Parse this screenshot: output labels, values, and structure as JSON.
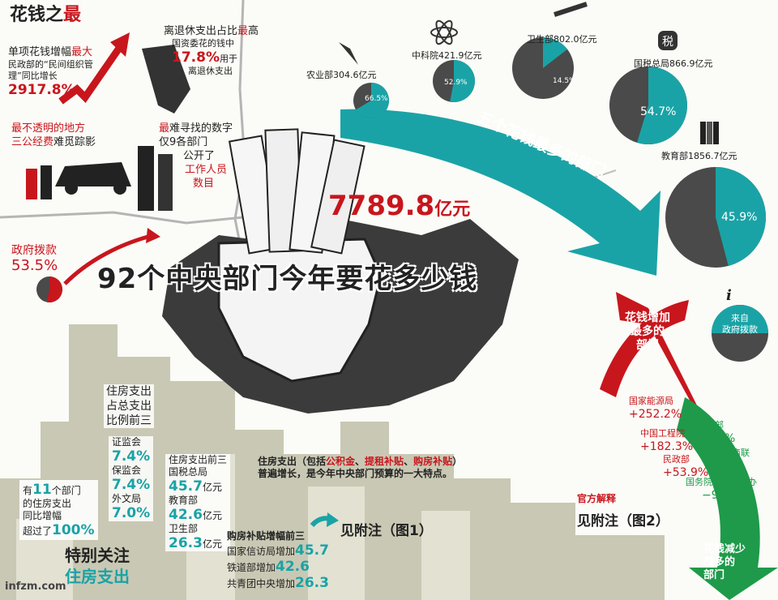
{
  "colors": {
    "red": "#c8161d",
    "teal": "#1aa3a6",
    "gray": "#4a4a4a",
    "green": "#1e9a4a",
    "building": "#c9c8b4"
  },
  "header": {
    "title_a": "花钱之",
    "title_b": "最"
  },
  "facts": {
    "f1_a": "单项花钱增幅",
    "f1_b": "最大",
    "f1_c": "民政部的“民间组织管",
    "f1_d": "理”同比增长",
    "f1_e": "2917.8%",
    "f2_a": "离退休支出占比",
    "f2_b": "最",
    "f2_c": "高",
    "f2_d": "国资委花的钱中",
    "f2_e": "17.8%",
    "f2_f": "用于",
    "f2_g": "离退休支出",
    "f3_a": "最不透明的地方",
    "f3_b": "三公经费",
    "f3_c": "难觅踪影",
    "f4_a": "最",
    "f4_b": "难寻找的数字",
    "f4_c": "仅9各部门",
    "f4_d": "公开了",
    "f4_e": "工作人员",
    "f4_f": "数目"
  },
  "gov": {
    "label": "政府拨款",
    "value": "53.5%"
  },
  "total": {
    "value": "7789.8",
    "unit": "亿元"
  },
  "main_title": "92个中央部门今年要花多少钱",
  "arrow_top": "五个花钱最多的部门",
  "info_icon": "i",
  "legend": {
    "line1": "来自",
    "line2": "政府拨款"
  },
  "chart_data": {
    "type": "pie",
    "series": [
      {
        "category": "农业部",
        "amount": "304.6亿元",
        "share": 66.5,
        "share_label": "66.5%"
      },
      {
        "category": "中科院",
        "amount": "421.9亿元",
        "share": 52.9,
        "share_label": "52.9%"
      },
      {
        "category": "卫生部",
        "amount": "802.0亿元",
        "share": 14.5,
        "share_label": "14.5%"
      },
      {
        "category": "国税总局",
        "amount": "866.9亿元",
        "share": 54.7,
        "share_label": "54.7%"
      },
      {
        "category": "教育部",
        "amount": "1856.7亿元",
        "share": 45.9,
        "share_label": "45.9%"
      }
    ]
  },
  "increase": {
    "label1": "花钱增加",
    "label2": "最多的",
    "label3": "部门",
    "items": [
      {
        "name": "国家能源局",
        "value": "+252.2%"
      },
      {
        "name": "中国工程院",
        "value": "+182.3%"
      },
      {
        "name": "民政部",
        "value": "+53.9%"
      }
    ]
  },
  "decrease": {
    "label1": "花钱减少",
    "label2": "最多的",
    "label3": "部门",
    "items": [
      {
        "name": "监察部",
        "value": "−6.7%"
      },
      {
        "name": "全国工商联",
        "value": "−9.6%"
      },
      {
        "name": "国务院南水北调办",
        "value": "−95.9%"
      }
    ]
  },
  "official": {
    "label": "官方解释",
    "note": "见附注（图2）"
  },
  "housing": {
    "rank_a": "住房支出",
    "rank_b": "占总支出",
    "rank_c": "比例前三",
    "r1_name": "证监会",
    "r1_val": "7.4%",
    "r2_name": "保监会",
    "r2_val": "7.4%",
    "r3_name": "外文局",
    "r3_val": "7.0%",
    "top_title": "住房支出前三",
    "t1_name": "国税总局",
    "t1_val": "45.7",
    "t2_name": "教育部",
    "t2_val": "42.6",
    "t3_name": "卫生部",
    "t3_val": "26.3",
    "unit": "亿元",
    "g_a": "有",
    "g_b": "11",
    "g_c": "个部门",
    "g_d": "的住房支出",
    "g_e": "同比增幅",
    "g_f": "超过了",
    "g_g": "100%",
    "purchase_title": "购房补贴增幅前三",
    "p1_name": "国家信访局增加",
    "p1_val": "45.7",
    "p2_name": "铁道部增加",
    "p2_val": "42.6",
    "p3_name": "共青团中央增加",
    "p3_val": "26.3",
    "note_a": "住房支出（包括",
    "note_b": "公积金",
    "note_c": "、",
    "note_d": "提租补贴",
    "note_e": "、",
    "note_f": "购房补贴",
    "note_g": "）",
    "note_h": "普遍增长，是今年中央部门预算的一大特点。",
    "see": "见附注（图1）",
    "focus_a": "特别关注",
    "focus_b": "住房支出"
  },
  "watermark": "infzm.com"
}
